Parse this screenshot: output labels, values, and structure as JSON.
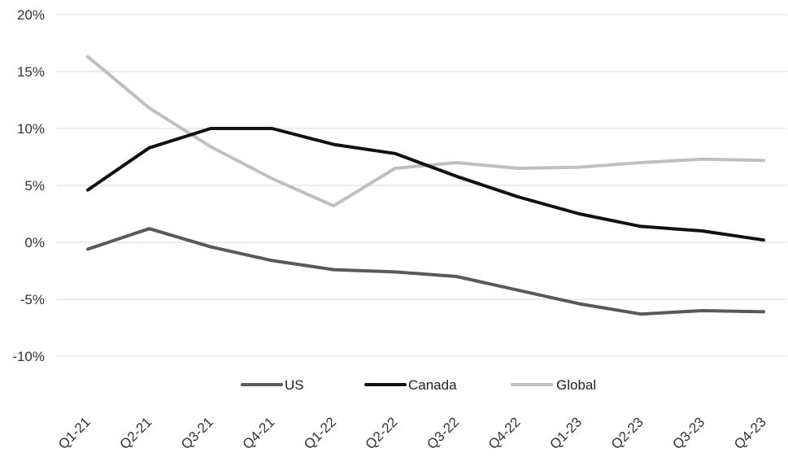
{
  "chart_data": {
    "type": "line",
    "title": "",
    "xlabel": "",
    "ylabel": "",
    "categories": [
      "Q1-21",
      "Q2-21",
      "Q3-21",
      "Q4-21",
      "Q1-22",
      "Q2-22",
      "Q3-22",
      "Q4-22",
      "Q1-23",
      "Q2-23",
      "Q3-23",
      "Q4-23"
    ],
    "y_ticks": [
      -10,
      -5,
      0,
      5,
      10,
      15,
      20
    ],
    "y_tick_labels": [
      "-10%",
      "-5%",
      "0%",
      "5%",
      "10%",
      "15%",
      "20%"
    ],
    "ylim": [
      -10,
      20
    ],
    "grid": true,
    "legend_position": "bottom",
    "series": [
      {
        "name": "US",
        "color": "#595959",
        "values": [
          -0.6,
          1.2,
          -0.4,
          -1.6,
          -2.4,
          -2.6,
          -3.0,
          -4.2,
          -5.4,
          -6.3,
          -6.0,
          -6.1
        ]
      },
      {
        "name": "Canada",
        "color": "#111111",
        "values": [
          4.6,
          8.3,
          10.0,
          10.0,
          8.6,
          7.8,
          5.8,
          4.0,
          2.5,
          1.4,
          1.0,
          0.2
        ]
      },
      {
        "name": "Global",
        "color": "#bfbfbf",
        "values": [
          16.3,
          11.8,
          8.4,
          5.6,
          3.2,
          6.5,
          7.0,
          6.5,
          6.6,
          7.0,
          7.3,
          7.2
        ]
      }
    ]
  }
}
